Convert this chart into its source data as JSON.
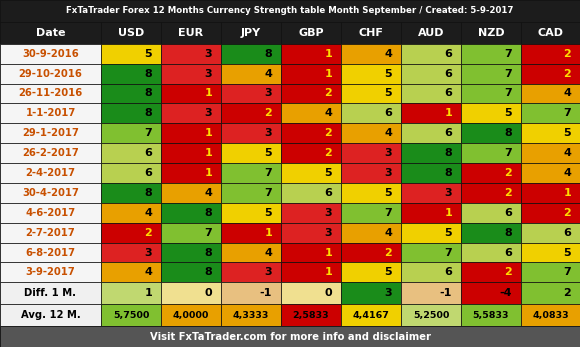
{
  "title": "FxTaTrader Forex 12 Months Currency Strength table Month September / Created: 5-9-2017",
  "footer": "Visit FxTaTrader.com for more info and disclaimer",
  "columns": [
    "Date",
    "USD",
    "EUR",
    "JPY",
    "GBP",
    "CHF",
    "AUD",
    "NZD",
    "CAD"
  ],
  "rows": [
    {
      "date": "30-9-2016",
      "values": [
        5,
        3,
        8,
        1,
        4,
        6,
        7,
        2
      ]
    },
    {
      "date": "29-10-2016",
      "values": [
        8,
        3,
        4,
        1,
        5,
        6,
        7,
        2
      ]
    },
    {
      "date": "26-11-2016",
      "values": [
        8,
        1,
        3,
        2,
        5,
        6,
        7,
        4
      ]
    },
    {
      "date": "1-1-2017",
      "values": [
        8,
        3,
        2,
        4,
        6,
        1,
        5,
        7
      ]
    },
    {
      "date": "29-1-2017",
      "values": [
        7,
        1,
        3,
        2,
        4,
        6,
        8,
        5
      ]
    },
    {
      "date": "26-2-2017",
      "values": [
        6,
        1,
        5,
        2,
        3,
        8,
        7,
        4
      ]
    },
    {
      "date": "2-4-2017",
      "values": [
        6,
        1,
        7,
        5,
        3,
        8,
        2,
        4
      ]
    },
    {
      "date": "30-4-2017",
      "values": [
        8,
        4,
        7,
        6,
        5,
        3,
        2,
        1
      ]
    },
    {
      "date": "4-6-2017",
      "values": [
        4,
        8,
        5,
        3,
        7,
        1,
        6,
        2
      ]
    },
    {
      "date": "2-7-2017",
      "values": [
        2,
        7,
        1,
        3,
        4,
        5,
        8,
        6
      ]
    },
    {
      "date": "6-8-2017",
      "values": [
        3,
        8,
        4,
        1,
        2,
        7,
        6,
        5
      ]
    },
    {
      "date": "3-9-2017",
      "values": [
        4,
        8,
        3,
        1,
        5,
        6,
        2,
        7
      ]
    }
  ],
  "diff_row": {
    "label": "Diff. 1 M.",
    "values": [
      1,
      0,
      -1,
      0,
      3,
      -1,
      -4,
      2
    ]
  },
  "avg_row": {
    "label": "Avg. 12 M.",
    "values": [
      "5,7500",
      "4,0000",
      "4,3333",
      "2,5833",
      "4,4167",
      "5,2500",
      "5,5833",
      "4,0833"
    ]
  },
  "color_map": {
    "1": "#cc0000",
    "2": "#cc0000",
    "3": "#dd2222",
    "4": "#e8a000",
    "5": "#f0d000",
    "6": "#b8d050",
    "7": "#80c030",
    "8": "#1a8c1a"
  },
  "diff_color_map": {
    "-4": "#cc0000",
    "-1": "#e8c080",
    "0": "#f0e090",
    "1": "#c0d870",
    "2": "#80c030",
    "3": "#1a8c1a"
  },
  "avg_color_map": {
    "2.5833": "#cc0000",
    "4.0000": "#e8a000",
    "4.0833": "#e8a000",
    "4.3333": "#e8a000",
    "4.4167": "#f0d000",
    "5.2500": "#c0d870",
    "5.5833": "#80c030",
    "5.7500": "#80c030"
  },
  "val_text_colors": {
    "1": "#ffdd00",
    "2": "#ffdd00",
    "3": "#000000",
    "4": "#000000",
    "5": "#000000",
    "6": "#000000",
    "7": "#000000",
    "8": "#000000"
  },
  "header_bg": "#1c1c1c",
  "header_fg": "#ffffff",
  "title_bg": "#1c1c1c",
  "title_fg": "#ffffff",
  "footer_bg": "#555555",
  "footer_fg": "#ffffff",
  "date_bg": "#f5f5f5",
  "date_fg": "#c85000",
  "diff_label_bg": "#f0f0f0",
  "avg_label_bg": "#f0f0f0",
  "label_fg": "#000000"
}
